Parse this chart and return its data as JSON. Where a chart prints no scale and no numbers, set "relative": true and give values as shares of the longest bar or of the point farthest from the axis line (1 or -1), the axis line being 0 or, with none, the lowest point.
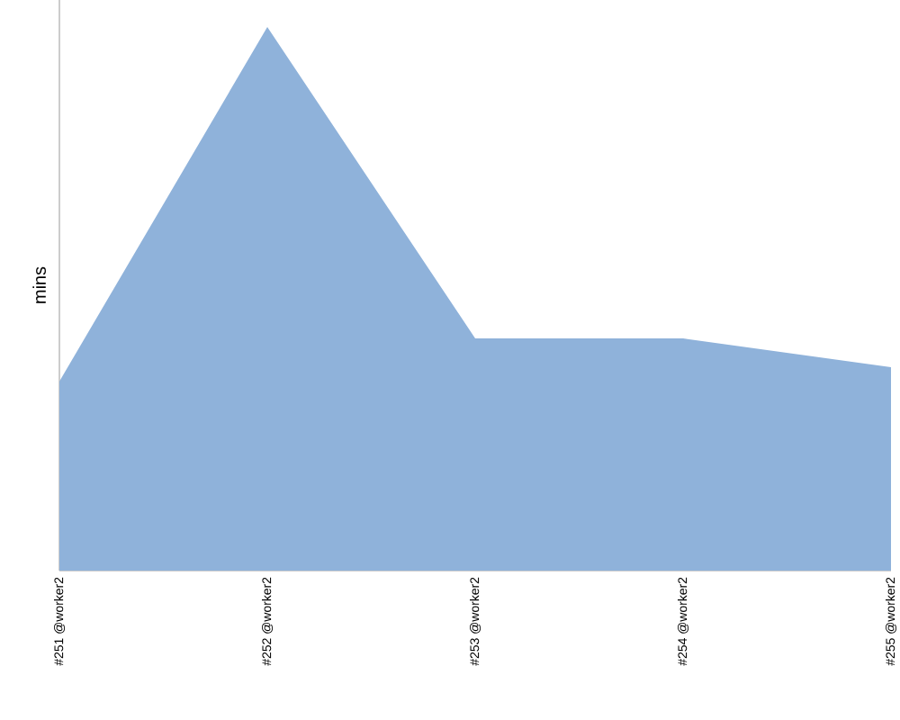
{
  "chart_data": {
    "type": "area",
    "ylabel": "mins",
    "relative": true,
    "color": "#8fb2da",
    "categories": [
      "#251 @worker2",
      "#252 @worker2",
      "#253 @worker2",
      "#254 @worker2",
      "#255 @worker2"
    ],
    "values": [
      0.348,
      1,
      0.427,
      0.427,
      0.374
    ]
  }
}
